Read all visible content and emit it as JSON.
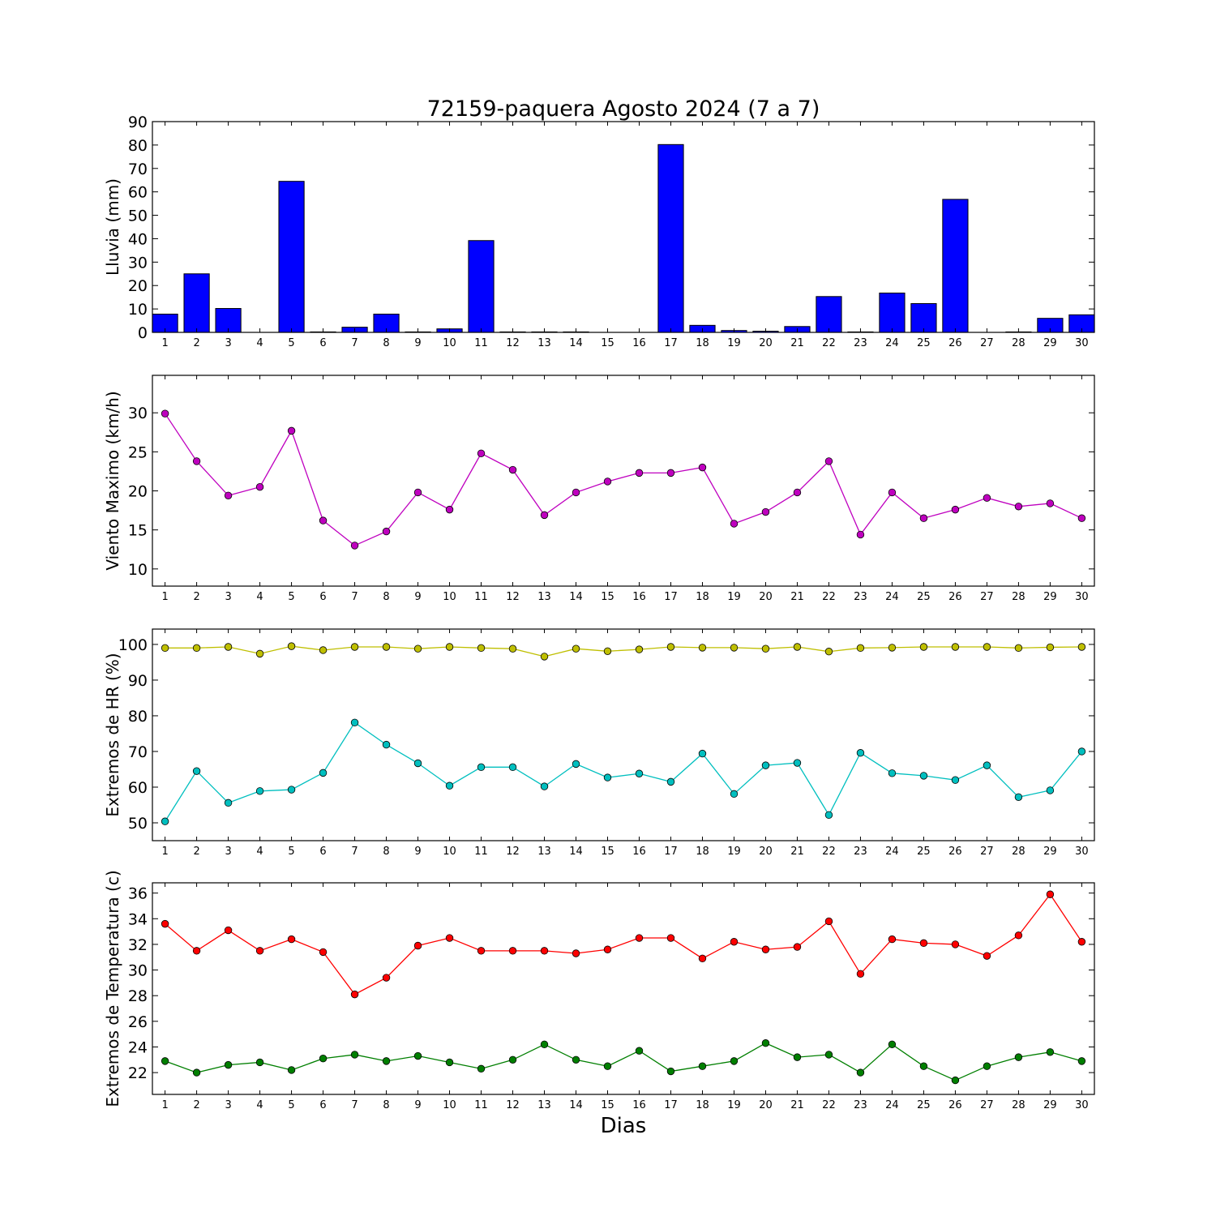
{
  "figure": {
    "title": "72159-paquera Agosto 2024  (7 a 7)",
    "xlabel": "Dias"
  },
  "chart_data": [
    {
      "type": "bar",
      "ylabel": "Lluvia (mm)",
      "ylim": [
        0,
        90
      ],
      "yticks": [
        0,
        10,
        20,
        30,
        40,
        50,
        60,
        70,
        80,
        90
      ],
      "categories": [
        1,
        2,
        3,
        4,
        5,
        6,
        7,
        8,
        9,
        10,
        11,
        12,
        13,
        14,
        15,
        16,
        17,
        18,
        19,
        20,
        21,
        22,
        23,
        24,
        25,
        26,
        27,
        28,
        29,
        30
      ],
      "series": [
        {
          "color": "#0000ff",
          "values": [
            7.8,
            25.0,
            10.2,
            0.0,
            64.5,
            0.2,
            2.2,
            7.8,
            0.2,
            1.5,
            39.2,
            0.2,
            0.2,
            0.2,
            0.0,
            0.0,
            80.2,
            3.0,
            0.8,
            0.5,
            2.5,
            15.3,
            0.2,
            16.8,
            12.3,
            56.8,
            0.0,
            0.2,
            6.0,
            7.5
          ]
        }
      ]
    },
    {
      "type": "line",
      "ylabel": "Viento Maximo (km/h)",
      "ylim": [
        7.8,
        34.8
      ],
      "yticks": [
        10,
        15,
        20,
        25,
        30
      ],
      "categories": [
        1,
        2,
        3,
        4,
        5,
        6,
        7,
        8,
        9,
        10,
        11,
        12,
        13,
        14,
        15,
        16,
        17,
        18,
        19,
        20,
        21,
        22,
        23,
        24,
        25,
        26,
        27,
        28,
        29,
        30
      ],
      "series": [
        {
          "color": "#bf00bf",
          "values": [
            29.9,
            23.8,
            19.4,
            20.5,
            27.7,
            16.2,
            13.0,
            14.8,
            19.8,
            17.6,
            24.8,
            22.7,
            16.9,
            19.8,
            21.2,
            22.3,
            22.3,
            23.0,
            15.8,
            17.3,
            19.8,
            23.8,
            14.4,
            19.8,
            16.5,
            17.6,
            19.1,
            18.0,
            18.4,
            16.5
          ]
        }
      ]
    },
    {
      "type": "line",
      "ylabel": "Extremos de HR (%)",
      "ylim": [
        45,
        104.3
      ],
      "yticks": [
        50,
        60,
        70,
        80,
        90,
        100
      ],
      "categories": [
        1,
        2,
        3,
        4,
        5,
        6,
        7,
        8,
        9,
        10,
        11,
        12,
        13,
        14,
        15,
        16,
        17,
        18,
        19,
        20,
        21,
        22,
        23,
        24,
        25,
        26,
        27,
        28,
        29,
        30
      ],
      "series": [
        {
          "color": "#bfbf00",
          "values": [
            99.0,
            99.0,
            99.3,
            97.4,
            99.5,
            98.4,
            99.3,
            99.3,
            98.8,
            99.3,
            99.0,
            98.8,
            96.6,
            98.8,
            98.1,
            98.6,
            99.3,
            99.1,
            99.1,
            98.8,
            99.3,
            98.0,
            99.0,
            99.1,
            99.3,
            99.3,
            99.3,
            99.0,
            99.2,
            99.3
          ]
        },
        {
          "color": "#00bfbf",
          "values": [
            50.4,
            64.5,
            55.6,
            58.9,
            59.3,
            64.0,
            78.1,
            71.9,
            66.7,
            60.4,
            65.6,
            65.6,
            60.2,
            66.5,
            62.7,
            63.8,
            61.5,
            69.4,
            58.1,
            66.1,
            66.8,
            52.2,
            69.6,
            63.9,
            63.2,
            62.0,
            66.1,
            57.2,
            59.1,
            70.0
          ]
        }
      ]
    },
    {
      "type": "line",
      "ylabel": "Extremos de Temperatura (c)",
      "ylim": [
        20.3,
        36.8
      ],
      "yticks": [
        22,
        24,
        26,
        28,
        30,
        32,
        34,
        36
      ],
      "categories": [
        1,
        2,
        3,
        4,
        5,
        6,
        7,
        8,
        9,
        10,
        11,
        12,
        13,
        14,
        15,
        16,
        17,
        18,
        19,
        20,
        21,
        22,
        23,
        24,
        25,
        26,
        27,
        28,
        29,
        30
      ],
      "series": [
        {
          "color": "#ff0000",
          "values": [
            33.6,
            31.5,
            33.1,
            31.5,
            32.4,
            31.4,
            28.1,
            29.4,
            31.9,
            32.5,
            31.5,
            31.5,
            31.5,
            31.3,
            31.6,
            32.5,
            32.5,
            30.9,
            32.2,
            31.6,
            31.8,
            33.8,
            29.7,
            32.4,
            32.1,
            32.0,
            31.1,
            32.7,
            35.9,
            32.2
          ]
        },
        {
          "color": "#007f00",
          "values": [
            22.9,
            22.0,
            22.6,
            22.8,
            22.2,
            23.1,
            23.4,
            22.9,
            23.3,
            22.8,
            22.3,
            23.0,
            24.2,
            23.0,
            22.5,
            23.7,
            22.1,
            22.5,
            22.9,
            24.3,
            23.2,
            23.4,
            22.0,
            24.2,
            22.5,
            21.4,
            22.5,
            23.2,
            23.6,
            22.9
          ]
        }
      ]
    }
  ]
}
